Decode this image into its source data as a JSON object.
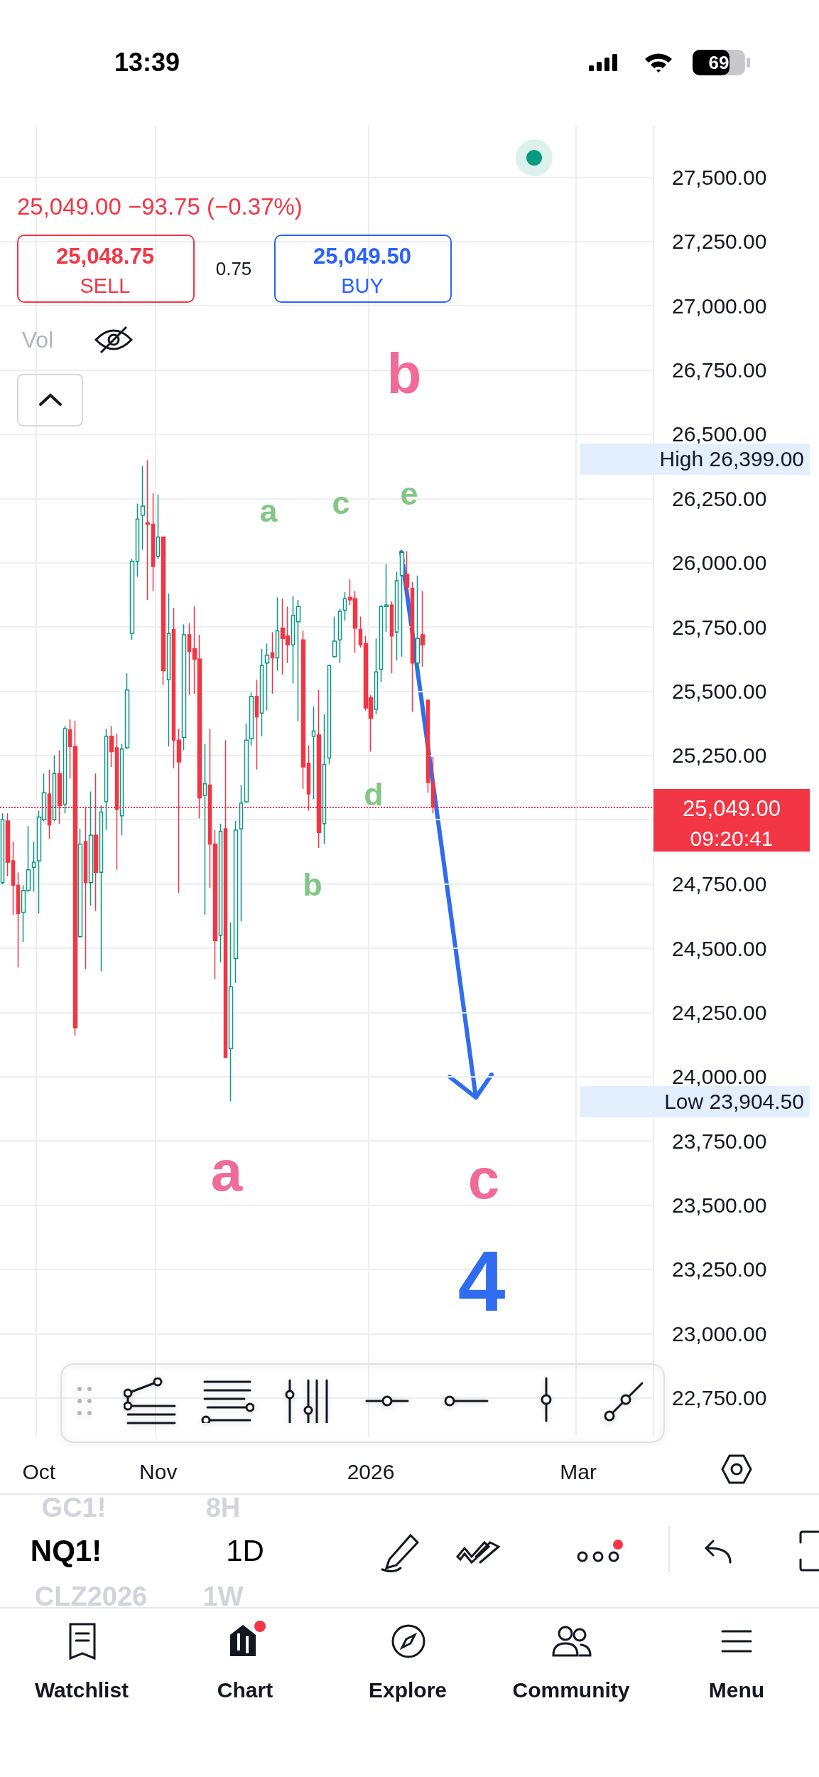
{
  "chart_data": {
    "type": "candlestick",
    "categories": [
      null,
      null,
      null,
      null,
      null,
      null,
      null,
      "Oct",
      null,
      null,
      null,
      null,
      null,
      null,
      null,
      null,
      null,
      null,
      null,
      null,
      null,
      null,
      null,
      null,
      null,
      null,
      null,
      null,
      null,
      null,
      "Nov",
      null,
      null,
      null,
      null,
      null,
      null,
      null,
      null,
      null,
      null,
      null,
      null,
      null,
      null,
      null,
      null,
      null,
      null,
      null,
      null,
      null,
      null,
      null,
      null,
      null,
      null,
      null,
      null,
      null,
      null,
      null,
      null,
      null,
      null,
      null,
      null,
      null,
      null,
      null,
      null,
      "2026",
      null,
      null,
      null,
      null,
      null,
      null,
      null,
      null,
      null,
      null,
      null,
      null,
      null,
      null,
      null,
      null,
      null,
      null,
      null,
      null,
      null,
      null,
      null,
      null,
      null,
      null,
      null,
      null,
      null,
      null,
      null,
      null,
      null,
      null,
      null,
      null,
      null,
      null,
      null,
      "Mar",
      null,
      null,
      null,
      null,
      null,
      null,
      null,
      null,
      null,
      null,
      null,
      null,
      null,
      null
    ],
    "ohlc": [
      [
        24755,
        25025,
        24750,
        25000
      ],
      [
        24995,
        25025,
        24780,
        24835
      ],
      [
        24840,
        24915,
        24630,
        24745
      ],
      [
        24745,
        24795,
        24425,
        24635
      ],
      [
        24640,
        24745,
        24525,
        24725
      ],
      [
        24725,
        24975,
        24720,
        24805
      ],
      [
        24815,
        24915,
        24720,
        24835
      ],
      [
        24840,
        25035,
        24635,
        25010
      ],
      [
        25000,
        25180,
        24995,
        25105
      ],
      [
        25100,
        25195,
        24925,
        24980
      ],
      [
        25000,
        25250,
        24995,
        25180
      ],
      [
        25180,
        25270,
        24985,
        25055
      ],
      [
        25060,
        25365,
        25025,
        25355
      ],
      [
        25350,
        25390,
        25160,
        25285
      ],
      [
        25285,
        25385,
        24160,
        24190
      ],
      [
        24545,
        24965,
        24540,
        24905
      ],
      [
        24915,
        25045,
        24420,
        24755
      ],
      [
        24755,
        25110,
        24665,
        24940
      ],
      [
        24940,
        25180,
        24645,
        24795
      ],
      [
        24795,
        25055,
        24410,
        25030
      ],
      [
        25070,
        25355,
        24960,
        25325
      ],
      [
        25325,
        25365,
        25205,
        25265
      ],
      [
        25280,
        25335,
        24805,
        25040
      ],
      [
        25015,
        25295,
        24940,
        25275
      ],
      [
        25280,
        25570,
        25275,
        25505
      ],
      [
        25725,
        26015,
        25700,
        26005
      ],
      [
        26005,
        26230,
        25945,
        26170
      ],
      [
        26185,
        26375,
        26050,
        26220
      ],
      [
        26155,
        26399,
        25855,
        26150
      ],
      [
        26150,
        26270,
        25890,
        25985
      ],
      [
        26025,
        26265,
        26015,
        26100
      ],
      [
        26100,
        26100,
        25525,
        25580
      ],
      [
        25545,
        25880,
        25285,
        25725
      ],
      [
        25740,
        25825,
        25200,
        25310
      ],
      [
        25310,
        25355,
        24715,
        25225
      ],
      [
        25320,
        25760,
        25270,
        25720
      ],
      [
        25720,
        25765,
        25485,
        25655
      ],
      [
        25665,
        25830,
        25490,
        25625
      ],
      [
        25625,
        25720,
        25005,
        25085
      ],
      [
        25095,
        25295,
        24630,
        25140
      ],
      [
        25135,
        25355,
        24735,
        24905
      ],
      [
        24905,
        24960,
        24380,
        24530
      ],
      [
        24550,
        24985,
        24445,
        24955
      ],
      [
        24965,
        25310,
        24075,
        24075
      ],
      [
        24110,
        24600,
        23904.5,
        24350
      ],
      [
        24460,
        24995,
        24365,
        24960
      ],
      [
        24965,
        25135,
        24605,
        25065
      ],
      [
        25070,
        25375,
        25065,
        25310
      ],
      [
        25315,
        25495,
        25290,
        25480
      ],
      [
        25480,
        25545,
        25195,
        25400
      ],
      [
        25415,
        25665,
        25325,
        25600
      ],
      [
        25610,
        25685,
        25425,
        25640
      ],
      [
        25650,
        25730,
        25490,
        25630
      ],
      [
        25630,
        25865,
        25580,
        25735
      ],
      [
        25745,
        25860,
        25565,
        25705
      ],
      [
        25715,
        25830,
        25610,
        25680
      ],
      [
        25680,
        25870,
        25530,
        25795
      ],
      [
        25770,
        25855,
        25385,
        25830
      ],
      [
        25700,
        25735,
        25120,
        25205
      ],
      [
        25220,
        25290,
        25035,
        25100
      ],
      [
        25325,
        25440,
        25080,
        25345
      ],
      [
        25330,
        25505,
        24890,
        24950
      ],
      [
        24985,
        25410,
        24905,
        25215
      ],
      [
        25240,
        25600,
        25215,
        25600
      ],
      [
        25635,
        25790,
        25630,
        25695
      ],
      [
        25700,
        25820,
        25610,
        25810
      ],
      [
        25815,
        25885,
        25775,
        25860
      ],
      [
        25865,
        25935,
        25835,
        25855
      ],
      [
        25860,
        25890,
        25650,
        25745
      ],
      [
        25740,
        25790,
        25670,
        25680
      ],
      [
        25685,
        25715,
        25425,
        25435
      ],
      [
        25475,
        25485,
        25265,
        25395
      ],
      [
        25430,
        25705,
        25410,
        25575
      ],
      [
        25585,
        25835,
        25535,
        25830
      ],
      [
        25830,
        25995,
        25730,
        25835
      ],
      [
        25835,
        25850,
        25570,
        25715
      ],
      [
        25730,
        25965,
        25620,
        25930
      ],
      [
        25950,
        26040,
        25635,
        26040
      ],
      [
        25955,
        26045,
        25875,
        25905
      ],
      [
        25900,
        25925,
        25420,
        25610
      ],
      [
        25610,
        25950,
        25570,
        25705
      ],
      [
        25720,
        25890,
        25595,
        25680
      ],
      [
        25465,
        25465,
        25105,
        25145
      ],
      [
        25145,
        25245,
        25025,
        25049
      ],
      null,
      null,
      null,
      null,
      null,
      null,
      null,
      null,
      null,
      null,
      null,
      null,
      null,
      null,
      null,
      null,
      null,
      null,
      null,
      null,
      null,
      null,
      null,
      null,
      null,
      null,
      null,
      null,
      null,
      null,
      null,
      null,
      null,
      null,
      null,
      null,
      null,
      null,
      null,
      null,
      null,
      null
    ],
    "ylim": [
      22600,
      27700
    ],
    "yticks": [
      {
        "value": 22750,
        "label": "22,750.00"
      },
      {
        "value": 23000,
        "label": "23,000.00"
      },
      {
        "value": 23250,
        "label": "23,250.00"
      },
      {
        "value": 23500,
        "label": "23,500.00"
      },
      {
        "value": 23750,
        "label": "23,750.00"
      },
      {
        "value": 24000,
        "label": "24,000.00"
      },
      {
        "value": 24250,
        "label": "24,250.00"
      },
      {
        "value": 24500,
        "label": "24,500.00"
      },
      {
        "value": 24750,
        "label": "24,750.00"
      },
      {
        "value": 25000,
        "label": null
      },
      {
        "value": 25250,
        "label": "25,250.00"
      },
      {
        "value": 25500,
        "label": "25,500.00"
      },
      {
        "value": 25750,
        "label": "25,750.00"
      },
      {
        "value": 26000,
        "label": "26,000.00"
      },
      {
        "value": 26250,
        "label": "26,250.00"
      },
      {
        "value": 26500,
        "label": "26,500.00"
      },
      {
        "value": 26750,
        "label": "26,750.00"
      },
      {
        "value": 27000,
        "label": "27,000.00"
      },
      {
        "value": 27250,
        "label": "27,250.00"
      },
      {
        "value": 27500,
        "label": "27,500.00"
      }
    ],
    "grid": true,
    "ref_lines": [
      {
        "axis": "y",
        "value": 25049,
        "label": "25,049.00",
        "color": "#f23645",
        "line_style": "dotted"
      }
    ],
    "annotations": [
      "13:39",
      "69",
      "25,049.00 −93.75 (−0.37%)",
      "25,048.75",
      "SELL",
      "0.75",
      "25,049.50",
      "BUY",
      "Vol",
      "High 26,399.00",
      "Low 23,904.50",
      "09:20:41",
      "b",
      "a",
      "c",
      "e",
      "d",
      "b",
      "a",
      "c",
      "4",
      "GC1!",
      "8H",
      "NQ1!",
      "1D",
      "CLZ2026",
      "1W",
      "Watchlist",
      "Chart",
      "Explore",
      "Community",
      "Menu"
    ]
  }
}
